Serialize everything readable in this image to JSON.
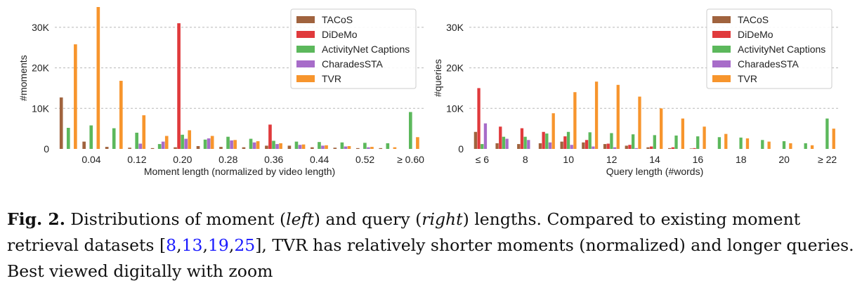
{
  "chart_data": [
    {
      "type": "bar",
      "ylabel": "#moments",
      "xlabel": "Moment length (normalized by video length)",
      "ylim": [
        0,
        35000
      ],
      "yticks": [
        0,
        10000,
        20000,
        30000
      ],
      "ytick_labels": [
        "0",
        "10K",
        "20K",
        "30K"
      ],
      "xticks": [
        {
          "pos": 1,
          "label": "0.04"
        },
        {
          "pos": 3,
          "label": "0.12"
        },
        {
          "pos": 5,
          "label": "0.20"
        },
        {
          "pos": 7,
          "label": "0.28"
        },
        {
          "pos": 9,
          "label": "0.36"
        },
        {
          "pos": 11,
          "label": "0.44"
        },
        {
          "pos": 13,
          "label": "0.52"
        },
        {
          "pos": 15,
          "label": "≥ 0.60"
        }
      ],
      "grid": "y-dashed",
      "legend_position": "top-right",
      "x": [
        0,
        1,
        2,
        3,
        4,
        5,
        6,
        7,
        8,
        9,
        10,
        11,
        12,
        13,
        14,
        15
      ],
      "series": [
        {
          "name": "TACoS",
          "color": "#a0633e",
          "values": [
            12700,
            1800,
            500,
            300,
            200,
            400,
            700,
            500,
            400,
            800,
            800,
            400,
            300,
            200,
            200,
            0
          ]
        },
        {
          "name": "DiDeMo",
          "color": "#e03a3c",
          "values": [
            0,
            0,
            0,
            0,
            0,
            31000,
            0,
            0,
            0,
            6000,
            0,
            0,
            0,
            0,
            0,
            0
          ]
        },
        {
          "name": "ActivityNet Captions",
          "color": "#5cb85c",
          "values": [
            5200,
            5800,
            5100,
            4000,
            1200,
            3500,
            2300,
            3000,
            2500,
            2000,
            1800,
            1700,
            1600,
            1500,
            1400,
            9100
          ]
        },
        {
          "name": "CharadesSTA",
          "color": "#a76cc9",
          "values": [
            0,
            0,
            0,
            1300,
            1800,
            2500,
            2600,
            2100,
            1600,
            1200,
            1000,
            800,
            600,
            400,
            0,
            0
          ]
        },
        {
          "name": "TVR",
          "color": "#f7952d",
          "values": [
            25800,
            35000,
            16800,
            8300,
            3200,
            4600,
            3200,
            2200,
            1900,
            1400,
            1100,
            900,
            700,
            500,
            400,
            2900
          ]
        }
      ]
    },
    {
      "type": "bar",
      "ylabel": "#queries",
      "xlabel": "Query length (#words)",
      "ylim": [
        0,
        35000
      ],
      "yticks": [
        0,
        10000,
        20000,
        30000
      ],
      "ytick_labels": [
        "0",
        "10K",
        "20K",
        "30K"
      ],
      "xticks": [
        {
          "pos": 6,
          "label": "≤ 6"
        },
        {
          "pos": 8,
          "label": "8"
        },
        {
          "pos": 10,
          "label": "10"
        },
        {
          "pos": 12,
          "label": "12"
        },
        {
          "pos": 14,
          "label": "14"
        },
        {
          "pos": 16,
          "label": "16"
        },
        {
          "pos": 18,
          "label": "18"
        },
        {
          "pos": 20,
          "label": "20"
        },
        {
          "pos": 22,
          "label": "≥ 22"
        }
      ],
      "grid": "y-dashed",
      "legend_position": "top-right",
      "x": [
        6,
        7,
        8,
        9,
        10,
        11,
        12,
        13,
        14,
        15,
        16,
        17,
        18,
        19,
        20,
        21,
        22
      ],
      "series": [
        {
          "name": "TACoS",
          "color": "#a0633e",
          "values": [
            4200,
            1400,
            1200,
            1400,
            1800,
            1600,
            1200,
            800,
            400,
            200,
            100,
            0,
            0,
            0,
            0,
            0,
            0
          ]
        },
        {
          "name": "DiDeMo",
          "color": "#e03a3c",
          "values": [
            15000,
            5500,
            5100,
            4200,
            3100,
            2200,
            1300,
            1000,
            600,
            400,
            200,
            0,
            0,
            0,
            0,
            0,
            0
          ]
        },
        {
          "name": "ActivityNet Captions",
          "color": "#5cb85c",
          "values": [
            1200,
            3000,
            3000,
            3800,
            4200,
            4100,
            3900,
            3600,
            3400,
            3300,
            3100,
            2900,
            2800,
            2200,
            1900,
            1400,
            7500
          ]
        },
        {
          "name": "CharadesSTA",
          "color": "#a76cc9",
          "values": [
            6300,
            2500,
            2200,
            1600,
            1000,
            600,
            400,
            200,
            0,
            0,
            0,
            0,
            0,
            0,
            0,
            0,
            0
          ]
        },
        {
          "name": "TVR",
          "color": "#f7952d",
          "values": [
            0,
            0,
            0,
            8800,
            14000,
            16600,
            15800,
            12900,
            10000,
            7500,
            5500,
            3700,
            2600,
            1800,
            1400,
            900,
            5000
          ]
        }
      ]
    }
  ],
  "caption": {
    "label": "Fig. 2.",
    "text_a": " Distributions of moment (",
    "left": "left",
    "text_b": ") and query (",
    "right": "right",
    "text_c": ") lengths. Compared to existing moment retrieval datasets [",
    "cites": [
      "8",
      "13",
      "19",
      "25"
    ],
    "text_d": "], TVR has relatively shorter moments (normalized) and longer queries. Best viewed digitally with zoom"
  }
}
